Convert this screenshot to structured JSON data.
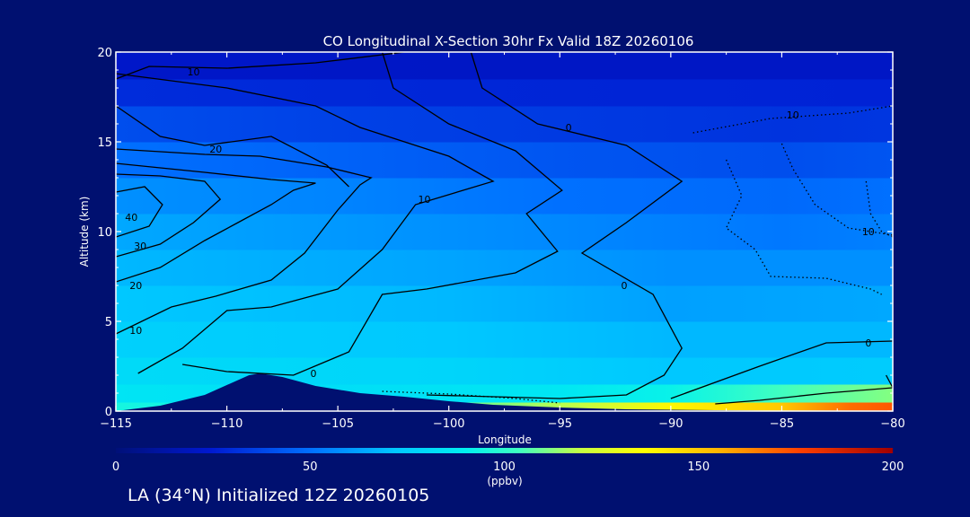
{
  "colors": {
    "background": "#001070",
    "terrain": "#001070",
    "contour": "#000000",
    "text": "#ffffff"
  },
  "chart_data": {
    "type": "heatmap",
    "title": "CO Longitudinal X-Section 30hr  Fx Valid 18Z 20260106",
    "xlabel": "Longitude",
    "ylabel": "Altitude (km)",
    "xlim": [
      -115,
      -80
    ],
    "ylim": [
      0,
      20
    ],
    "x_ticks": [
      -115,
      -110,
      -105,
      -100,
      -95,
      -90,
      -85,
      -80
    ],
    "x_tick_labels": [
      "−115",
      "−110",
      "−105",
      "−100",
      "−95",
      "−90",
      "−85",
      "−80"
    ],
    "y_ticks": [
      0,
      5,
      10,
      15,
      20
    ],
    "y_tick_labels": [
      "0",
      "5",
      "10",
      "15",
      "20"
    ],
    "colorbar": {
      "min": 0,
      "max": 200,
      "ticks": [
        0,
        50,
        100,
        150,
        200
      ],
      "tick_labels": [
        "0",
        "50",
        "100",
        "150",
        "200"
      ],
      "unit": "(ppbv)"
    },
    "field_bands": [
      {
        "alt": [
          0,
          0.5
        ],
        "values": [
          [
            -115,
            95
          ],
          [
            -105,
            90
          ],
          [
            -95,
            118
          ],
          [
            -90,
            138
          ],
          [
            -85,
            150
          ],
          [
            -82,
            168
          ],
          [
            -80,
            172
          ]
        ]
      },
      {
        "alt": [
          0.5,
          1.5
        ],
        "values": [
          [
            -115,
            85
          ],
          [
            -105,
            82
          ],
          [
            -95,
            86
          ],
          [
            -90,
            92
          ],
          [
            -85,
            104
          ],
          [
            -80,
            112
          ]
        ]
      },
      {
        "alt": [
          1.5,
          3
        ],
        "values": [
          [
            -115,
            80
          ],
          [
            -100,
            78
          ],
          [
            -90,
            72
          ],
          [
            -80,
            74
          ]
        ]
      },
      {
        "alt": [
          3,
          5
        ],
        "values": [
          [
            -115,
            76
          ],
          [
            -100,
            72
          ],
          [
            -90,
            68
          ],
          [
            -80,
            68
          ]
        ]
      },
      {
        "alt": [
          5,
          7
        ],
        "values": [
          [
            -115,
            72
          ],
          [
            -100,
            68
          ],
          [
            -90,
            62
          ],
          [
            -80,
            64
          ]
        ]
      },
      {
        "alt": [
          7,
          9
        ],
        "values": [
          [
            -115,
            68
          ],
          [
            -100,
            63
          ],
          [
            -90,
            58
          ],
          [
            -80,
            58
          ]
        ]
      },
      {
        "alt": [
          9,
          11
        ],
        "values": [
          [
            -115,
            64
          ],
          [
            -105,
            60
          ],
          [
            -95,
            56
          ],
          [
            -85,
            52
          ],
          [
            -80,
            54
          ]
        ]
      },
      {
        "alt": [
          11,
          13
        ],
        "values": [
          [
            -115,
            58
          ],
          [
            -105,
            55
          ],
          [
            -95,
            50
          ],
          [
            -85,
            48
          ],
          [
            -80,
            50
          ]
        ]
      },
      {
        "alt": [
          13,
          15
        ],
        "values": [
          [
            -115,
            50
          ],
          [
            -105,
            46
          ],
          [
            -95,
            42
          ],
          [
            -85,
            40
          ],
          [
            -80,
            42
          ]
        ]
      },
      {
        "alt": [
          15,
          17
        ],
        "values": [
          [
            -115,
            40
          ],
          [
            -105,
            36
          ],
          [
            -95,
            34
          ],
          [
            -85,
            32
          ],
          [
            -80,
            33
          ]
        ]
      },
      {
        "alt": [
          17,
          18.5
        ],
        "values": [
          [
            -115,
            30
          ],
          [
            -100,
            28
          ],
          [
            -80,
            27
          ]
        ]
      },
      {
        "alt": [
          18.5,
          20
        ],
        "values": [
          [
            -115,
            22
          ],
          [
            -100,
            21
          ],
          [
            -80,
            21
          ]
        ]
      }
    ],
    "terrain_profile": [
      [
        -115,
        0
      ],
      [
        -113,
        0.3
      ],
      [
        -111,
        0.9
      ],
      [
        -109,
        2.0
      ],
      [
        -108.5,
        2.1
      ],
      [
        -107.5,
        1.9
      ],
      [
        -106,
        1.4
      ],
      [
        -104,
        1.0
      ],
      [
        -102,
        0.8
      ],
      [
        -100,
        0.55
      ],
      [
        -98,
        0.35
      ],
      [
        -95,
        0.2
      ],
      [
        -92,
        0.1
      ],
      [
        -88,
        0.05
      ],
      [
        -85,
        0.02
      ],
      [
        -80,
        0
      ]
    ],
    "contours": [
      {
        "label": "10",
        "label_at": [
          -111.5,
          18.9
        ],
        "points": [
          [
            -115,
            18.5
          ],
          [
            -113.5,
            19.2
          ],
          [
            -110,
            19.1
          ],
          [
            -106,
            19.4
          ],
          [
            -102,
            20
          ],
          [
            -100,
            20
          ]
        ]
      },
      {
        "label": "20",
        "label_at": [
          -110.5,
          14.6
        ],
        "points": [
          [
            -115,
            17.0
          ],
          [
            -113,
            15.3
          ],
          [
            -111,
            14.8
          ],
          [
            -108,
            15.3
          ],
          [
            -105.5,
            13.7
          ],
          [
            -104.5,
            12.5
          ]
        ]
      },
      {
        "label": "30",
        "label_at": [
          -113.9,
          9.2
        ],
        "points": [
          [
            -115,
            13.2
          ],
          [
            -113,
            13.1
          ],
          [
            -111,
            12.8
          ],
          [
            -110.3,
            11.8
          ],
          [
            -111.5,
            10.5
          ],
          [
            -113,
            9.3
          ],
          [
            -115,
            8.6
          ]
        ]
      },
      {
        "label": "40",
        "label_at": [
          -114.3,
          10.8
        ],
        "points": [
          [
            -115,
            12.2
          ],
          [
            -113.7,
            12.5
          ],
          [
            -112.9,
            11.5
          ],
          [
            -113.5,
            10.3
          ],
          [
            -115,
            9.7
          ]
        ]
      },
      {
        "label": "20",
        "label_at": [
          -114.1,
          7.0
        ],
        "points": [
          [
            -115,
            7.2
          ],
          [
            -113,
            8.0
          ],
          [
            -111,
            9.5
          ],
          [
            -109.5,
            10.5
          ],
          [
            -108,
            11.5
          ],
          [
            -107,
            12.3
          ],
          [
            -106,
            12.7
          ],
          [
            -108,
            12.9
          ],
          [
            -111,
            13.3
          ],
          [
            -115,
            13.8
          ]
        ]
      },
      {
        "label": "10",
        "label_at": [
          -114.1,
          4.5
        ],
        "points": [
          [
            -115,
            4.3
          ],
          [
            -112.5,
            5.8
          ],
          [
            -110.5,
            6.4
          ],
          [
            -108,
            7.3
          ],
          [
            -106.5,
            8.8
          ],
          [
            -105,
            11.2
          ],
          [
            -104,
            12.6
          ],
          [
            -103.5,
            13.0
          ],
          [
            -105.5,
            13.6
          ],
          [
            -108.5,
            14.2
          ],
          [
            -111,
            14.3
          ],
          [
            -115,
            14.6
          ]
        ]
      },
      {
        "label": "10",
        "label_at": [
          -101.1,
          11.8
        ],
        "points": [
          [
            -114,
            2.1
          ],
          [
            -112,
            3.5
          ],
          [
            -110,
            5.6
          ],
          [
            -108,
            5.8
          ],
          [
            -105,
            6.8
          ],
          [
            -103,
            9.0
          ],
          [
            -101.5,
            11.5
          ],
          [
            -98,
            12.8
          ],
          [
            -100,
            14.2
          ],
          [
            -104,
            15.8
          ],
          [
            -106,
            17.0
          ],
          [
            -110,
            18.0
          ],
          [
            -115,
            18.8
          ]
        ]
      },
      {
        "label": "0",
        "label_at": [
          -106.1,
          2.1
        ],
        "points": [
          [
            -112,
            2.6
          ],
          [
            -110,
            2.2
          ],
          [
            -107,
            2.0
          ],
          [
            -104.5,
            3.3
          ],
          [
            -103,
            6.5
          ],
          [
            -101,
            6.8
          ],
          [
            -97,
            7.7
          ],
          [
            -95.1,
            8.9
          ],
          [
            -96.5,
            11.0
          ],
          [
            -94.9,
            12.3
          ],
          [
            -97,
            14.5
          ],
          [
            -100,
            16.0
          ],
          [
            -102.5,
            18.0
          ],
          [
            -103,
            20
          ]
        ]
      },
      {
        "label": "0",
        "label_at": [
          -94.6,
          15.8
        ],
        "points": [
          [
            -88,
            0.4
          ],
          [
            -86,
            0.6
          ],
          [
            -83,
            1.0
          ],
          [
            -80,
            1.3
          ],
          [
            -80.3,
            2.0
          ]
        ]
      },
      {
        "label": "0",
        "label_at": [
          -92.1,
          7.0
        ],
        "points": [
          [
            -101,
            0.9
          ],
          [
            -95,
            0.7
          ],
          [
            -92,
            0.9
          ],
          [
            -90.3,
            2.0
          ],
          [
            -89.5,
            3.5
          ],
          [
            -90.8,
            6.5
          ],
          [
            -94,
            8.8
          ],
          [
            -92,
            10.5
          ],
          [
            -89.5,
            12.8
          ],
          [
            -92,
            14.8
          ],
          [
            -96,
            16.0
          ],
          [
            -98.5,
            18.0
          ],
          [
            -99,
            20
          ]
        ]
      },
      {
        "label": "0",
        "label_at": [
          -81.1,
          3.8
        ],
        "points": [
          [
            -90,
            0.7
          ],
          [
            -86,
            2.5
          ],
          [
            -83,
            3.8
          ],
          [
            -80,
            3.9
          ]
        ]
      }
    ],
    "dotted_contours": [
      {
        "label": "10",
        "label_at": [
          -84.5,
          16.5
        ],
        "points": [
          [
            -89,
            15.5
          ],
          [
            -85.5,
            16.3
          ],
          [
            -82,
            16.6
          ],
          [
            -80,
            17.0
          ]
        ]
      },
      {
        "label": "10",
        "label_at": [
          -81.1,
          10.0
        ],
        "points": [
          [
            -85,
            14.9
          ],
          [
            -84.5,
            13.5
          ],
          [
            -83.5,
            11.5
          ],
          [
            -82,
            10.2
          ],
          [
            -80,
            9.8
          ]
        ]
      },
      {
        "label": "",
        "label_at": [
          -80,
          0
        ],
        "points": [
          [
            -87.5,
            14.0
          ],
          [
            -86.8,
            12.0
          ],
          [
            -87.5,
            10.2
          ],
          [
            -86.2,
            9.0
          ],
          [
            -85.5,
            7.5
          ],
          [
            -83,
            7.4
          ],
          [
            -81,
            6.8
          ],
          [
            -80.5,
            6.5
          ]
        ]
      },
      {
        "label": "",
        "label_at": [
          -80,
          0
        ],
        "points": [
          [
            -81.2,
            12.8
          ],
          [
            -81.0,
            11.0
          ],
          [
            -80.5,
            10.0
          ],
          [
            -80,
            9.7
          ]
        ]
      },
      {
        "label": "",
        "label_at": [
          -80,
          0
        ],
        "points": [
          [
            -103,
            1.1
          ],
          [
            -100,
            0.95
          ],
          [
            -97,
            0.7
          ],
          [
            -95,
            0.45
          ]
        ]
      }
    ]
  },
  "footer": {
    "text": "LA (34°N) Initialized 12Z 20260105"
  }
}
